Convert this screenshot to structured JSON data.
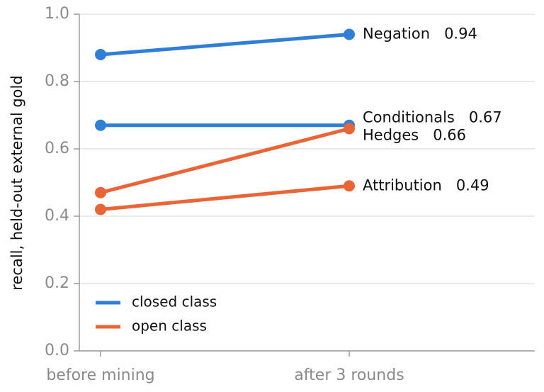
{
  "chart_data": {
    "type": "slope",
    "ylabel": "recall, held-out external gold",
    "categories": [
      "before mining",
      "after 3 rounds"
    ],
    "series": [
      {
        "name": "Negation",
        "color": "#2f7ed8",
        "values": [
          0.88,
          0.94
        ]
      },
      {
        "name": "Conditionals",
        "color": "#2f7ed8",
        "values": [
          0.67,
          0.67
        ]
      },
      {
        "name": "Hedges",
        "color": "#ea6535",
        "values": [
          0.47,
          0.66
        ]
      },
      {
        "name": "Attribution",
        "color": "#ea6535",
        "values": [
          0.42,
          0.49
        ]
      }
    ],
    "legend": [
      {
        "label": "closed class",
        "color": "#2f7ed8"
      },
      {
        "label": "open class",
        "color": "#ea6535"
      }
    ],
    "ylim": [
      0,
      1
    ],
    "yticks": [
      {
        "value": 0,
        "label": "0.0"
      },
      0.2,
      0.4,
      0.6,
      0.8,
      {
        "value": 1,
        "label": "1.0"
      }
    ],
    "grid": true
  }
}
